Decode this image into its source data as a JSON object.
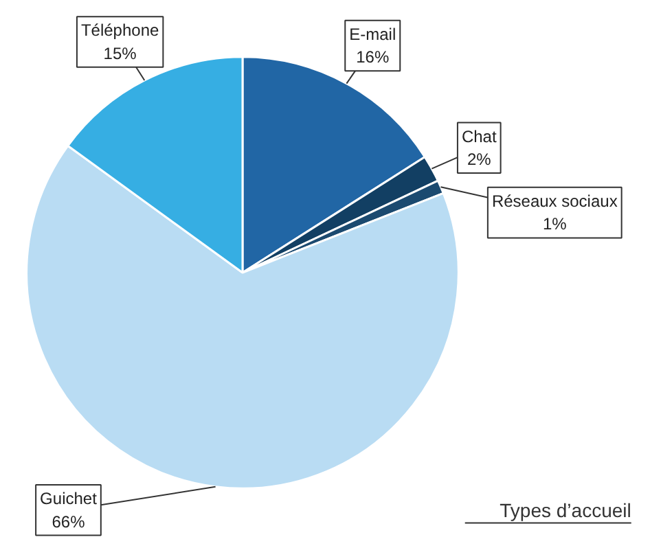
{
  "chart_data": {
    "type": "pie",
    "title": "Types d’accueil",
    "categories": [
      "E-mail",
      "Chat",
      "Réseaux sociaux",
      "Guichet",
      "Téléphone"
    ],
    "values": [
      16,
      2,
      1,
      66,
      15
    ],
    "colors": [
      "#2166a5",
      "#123f63",
      "#1b4a70",
      "#b9dcf3",
      "#36aee3"
    ],
    "value_labels": [
      "16%",
      "2%",
      "1%",
      "66%",
      "15%"
    ]
  }
}
